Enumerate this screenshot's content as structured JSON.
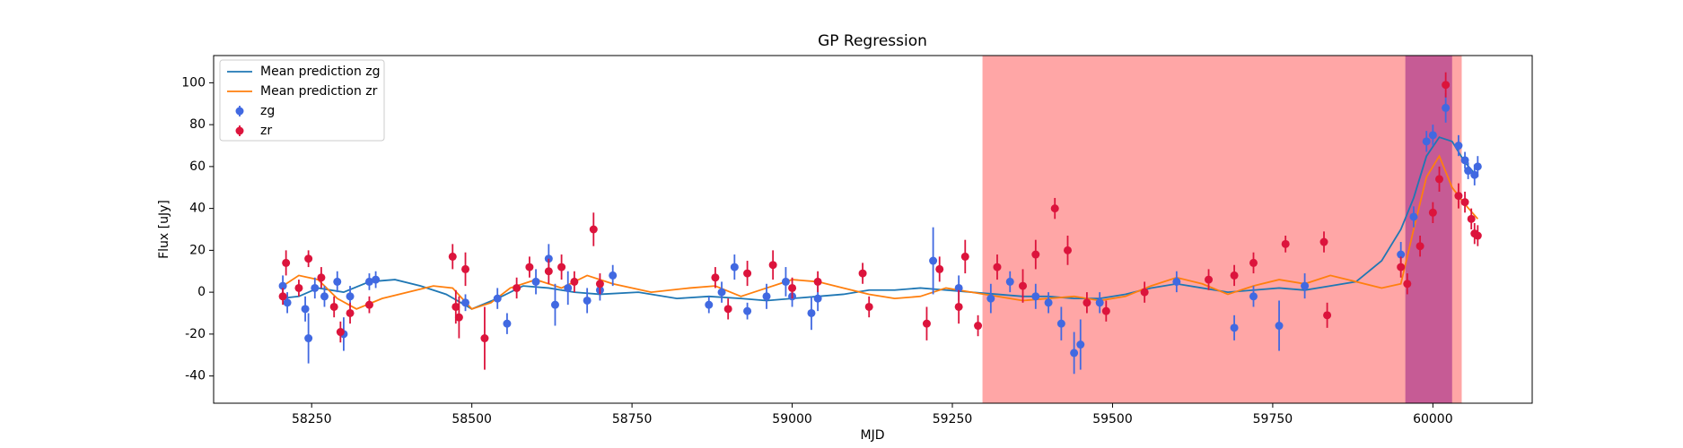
{
  "chart_data": {
    "type": "scatter",
    "title": "GP Regression",
    "xlabel": "MJD",
    "ylabel": "Flux [uJy]",
    "xlim": [
      58097,
      60155
    ],
    "ylim": [
      -53,
      113
    ],
    "xticks": [
      58250,
      58500,
      58750,
      59000,
      59250,
      59500,
      59750,
      60000
    ],
    "yticks": [
      -40,
      -20,
      0,
      20,
      40,
      60,
      80,
      100
    ],
    "legend": "upper left",
    "shaded_regions": [
      {
        "xlim": [
          59297,
          60045
        ],
        "color": "#ff0000",
        "alpha": 0.35
      },
      {
        "xlim": [
          59957,
          60030
        ],
        "color": "#800080",
        "alpha": 0.45
      }
    ],
    "series": [
      {
        "name": "Mean prediction zg",
        "type": "line",
        "color": "#1f77b4",
        "x": [
          58200,
          58230,
          58260,
          58300,
          58340,
          58380,
          58420,
          58460,
          58500,
          58540,
          58580,
          58620,
          58660,
          58700,
          58760,
          58820,
          58870,
          58920,
          58960,
          59000,
          59040,
          59080,
          59120,
          59160,
          59200,
          59240,
          59280,
          59320,
          59360,
          59400,
          59440,
          59480,
          59520,
          59560,
          59600,
          59640,
          59680,
          59720,
          59760,
          59800,
          59840,
          59880,
          59920,
          59950,
          59970,
          59990,
          60010,
          60030,
          60050,
          60070
        ],
        "values": [
          -3,
          -2,
          2,
          0,
          5,
          6,
          3,
          -1,
          -8,
          -3,
          3,
          2,
          0,
          -1,
          0,
          -3,
          -2,
          -3,
          -4,
          -3,
          -2,
          -1,
          1,
          1,
          2,
          1,
          0,
          -1,
          -2,
          -2,
          -3,
          -3,
          -1,
          2,
          4,
          2,
          0,
          1,
          2,
          1,
          3,
          5,
          15,
          30,
          45,
          65,
          74,
          72,
          62,
          55
        ]
      },
      {
        "name": "Mean prediction zr",
        "type": "line",
        "color": "#ff7f0e",
        "x": [
          58200,
          58230,
          58260,
          58290,
          58320,
          58360,
          58400,
          58440,
          58470,
          58500,
          58530,
          58560,
          58600,
          58640,
          58680,
          58720,
          58780,
          58840,
          58880,
          58920,
          58960,
          59000,
          59040,
          59080,
          59120,
          59160,
          59200,
          59240,
          59280,
          59320,
          59360,
          59400,
          59440,
          59480,
          59520,
          59560,
          59600,
          59640,
          59680,
          59720,
          59760,
          59800,
          59840,
          59880,
          59920,
          59950,
          59970,
          59990,
          60010,
          60030,
          60050,
          60070
        ],
        "values": [
          2,
          8,
          6,
          -3,
          -8,
          -3,
          0,
          3,
          2,
          -8,
          -5,
          2,
          6,
          2,
          8,
          4,
          0,
          2,
          3,
          -2,
          2,
          6,
          5,
          2,
          -1,
          -3,
          -2,
          2,
          0,
          -2,
          -4,
          -3,
          -2,
          -4,
          -2,
          3,
          7,
          4,
          -1,
          3,
          6,
          4,
          8,
          5,
          2,
          4,
          30,
          55,
          65,
          50,
          42,
          35
        ]
      },
      {
        "name": "zg",
        "type": "errorbar",
        "color": "#4169e1",
        "x": [
          58205,
          58212,
          58240,
          58245,
          58255,
          58270,
          58290,
          58300,
          58310,
          58340,
          58350,
          58490,
          58540,
          58555,
          58600,
          58620,
          58630,
          58650,
          58680,
          58700,
          58720,
          58870,
          58890,
          58910,
          58930,
          58960,
          58990,
          59000,
          59030,
          59040,
          59220,
          59260,
          59310,
          59340,
          59380,
          59400,
          59420,
          59440,
          59450,
          59480,
          59600,
          59690,
          59720,
          59760,
          59800,
          59950,
          59970,
          59990,
          60000,
          60020,
          60040,
          60050,
          60055,
          60065,
          60070
        ],
        "values": [
          3,
          -5,
          -8,
          -22,
          2,
          -2,
          5,
          -20,
          -2,
          5,
          6,
          -5,
          -3,
          -15,
          5,
          16,
          -6,
          2,
          -4,
          1,
          8,
          -6,
          0,
          12,
          -9,
          -2,
          5,
          -2,
          -10,
          -3,
          15,
          2,
          -3,
          5,
          -2,
          -5,
          -15,
          -29,
          -25,
          -5,
          5,
          -17,
          -2,
          -16,
          3,
          18,
          36,
          72,
          75,
          88,
          70,
          63,
          58,
          56,
          60
        ],
        "errors": [
          5,
          5,
          6,
          12,
          5,
          5,
          5,
          8,
          5,
          4,
          4,
          4,
          5,
          5,
          6,
          7,
          10,
          8,
          6,
          5,
          5,
          4,
          5,
          6,
          4,
          6,
          7,
          5,
          8,
          6,
          16,
          6,
          7,
          5,
          6,
          5,
          8,
          10,
          12,
          5,
          5,
          6,
          5,
          12,
          6,
          6,
          5,
          5,
          5,
          7,
          5,
          4,
          4,
          5,
          5
        ]
      },
      {
        "name": "zr",
        "type": "errorbar",
        "color": "#dc143c",
        "x": [
          58205,
          58210,
          58230,
          58245,
          58265,
          58285,
          58295,
          58310,
          58340,
          58470,
          58475,
          58480,
          58490,
          58520,
          58570,
          58590,
          58620,
          58640,
          58660,
          58690,
          58700,
          58880,
          58900,
          58930,
          58970,
          59000,
          59040,
          59110,
          59120,
          59210,
          59230,
          59260,
          59270,
          59290,
          59320,
          59360,
          59380,
          59410,
          59430,
          59460,
          59490,
          59550,
          59650,
          59690,
          59720,
          59770,
          59830,
          59835,
          59950,
          59960,
          59980,
          60000,
          60010,
          60020,
          60040,
          60050,
          60060,
          60065,
          60070
        ],
        "values": [
          -2,
          14,
          2,
          16,
          7,
          -7,
          -19,
          -10,
          -6,
          17,
          -7,
          -12,
          11,
          -22,
          2,
          12,
          10,
          12,
          5,
          30,
          4,
          7,
          -8,
          9,
          13,
          2,
          5,
          9,
          -7,
          -15,
          11,
          -7,
          17,
          -16,
          12,
          3,
          18,
          40,
          20,
          -5,
          -9,
          0,
          6,
          8,
          14,
          23,
          24,
          -11,
          12,
          4,
          22,
          38,
          54,
          99,
          46,
          43,
          35,
          28,
          27
        ],
        "errors": [
          4,
          6,
          4,
          4,
          5,
          5,
          5,
          5,
          4,
          6,
          8,
          10,
          8,
          15,
          5,
          5,
          6,
          6,
          5,
          8,
          5,
          5,
          5,
          6,
          7,
          5,
          5,
          5,
          5,
          8,
          6,
          8,
          8,
          5,
          6,
          8,
          7,
          5,
          7,
          5,
          5,
          5,
          5,
          5,
          5,
          4,
          5,
          6,
          5,
          5,
          5,
          5,
          6,
          6,
          6,
          5,
          5,
          5,
          5
        ]
      }
    ]
  }
}
